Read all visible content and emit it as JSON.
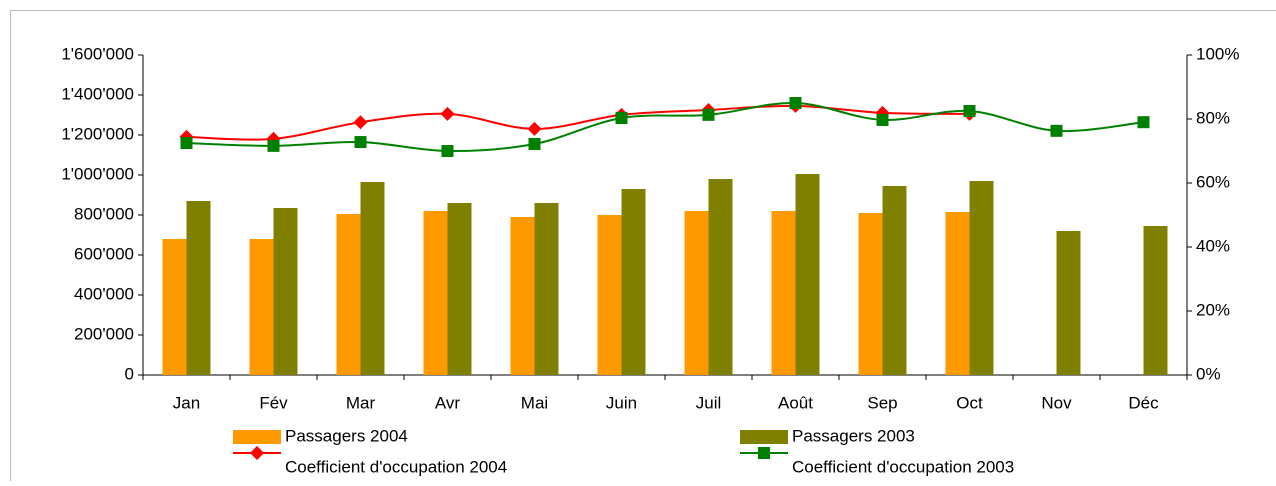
{
  "chart_data": {
    "type": "bar",
    "categories": [
      "Jan",
      "Fév",
      "Mar",
      "Avr",
      "Mai",
      "Juin",
      "Juil",
      "Août",
      "Sep",
      "Oct",
      "Nov",
      "Déc"
    ],
    "series": [
      {
        "name": "Passagers 2004",
        "type": "bar",
        "color": "#ff9900",
        "values": [
          680000,
          680000,
          805000,
          820000,
          790000,
          800000,
          820000,
          820000,
          810000,
          815000,
          null,
          null
        ]
      },
      {
        "name": "Passagers 2003",
        "type": "bar",
        "color": "#808000",
        "values": [
          870000,
          835000,
          965000,
          860000,
          860000,
          930000,
          980000,
          1005000,
          945000,
          970000,
          720000,
          745000
        ]
      },
      {
        "name": "Coefficient d'occupation 2004",
        "type": "line",
        "axis": "y2",
        "color": "#ff0000",
        "marker": "diamond",
        "values": [
          74.4,
          73.8,
          79,
          81.6,
          76.9,
          81.3,
          82.8,
          84.1,
          81.9,
          81.6,
          null,
          null
        ]
      },
      {
        "name": "Coefficient d'occupation 2003",
        "type": "line",
        "axis": "y2",
        "color": "#008000",
        "marker": "square",
        "values": [
          72.5,
          71.6,
          72.8,
          70,
          72.2,
          80.3,
          81.3,
          85,
          79.7,
          82.5,
          76.3,
          79
        ]
      }
    ],
    "ylim": [
      0,
      1600000
    ],
    "yticks": [
      0,
      {
        "value": 200000,
        "label": "200'000"
      },
      {
        "value": 400000,
        "label": "400'000"
      },
      {
        "value": 600000,
        "label": "600'000"
      },
      {
        "value": 800000,
        "label": "800'000"
      },
      {
        "value": 1000000,
        "label": "1'000'000"
      },
      {
        "value": 1200000,
        "label": "1'200'000"
      },
      {
        "value": 1400000,
        "label": "1'400'000"
      },
      {
        "value": 1600000,
        "label": "1'600'000"
      }
    ],
    "y2lim": [
      0,
      100
    ],
    "y2ticks": [
      {
        "value": 0,
        "label": "0%"
      },
      {
        "value": 20,
        "label": "20%"
      },
      {
        "value": 40,
        "label": "40%"
      },
      {
        "value": 60,
        "label": "60%"
      },
      {
        "value": 80,
        "label": "80%"
      },
      {
        "value": 100,
        "label": "100%"
      }
    ]
  }
}
